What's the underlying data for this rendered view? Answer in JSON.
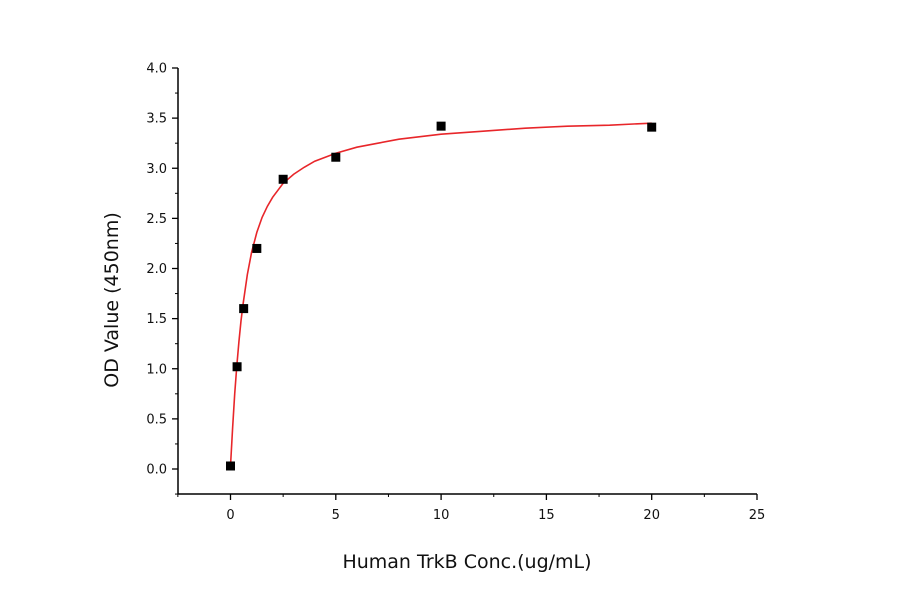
{
  "chart_data": {
    "type": "scatter",
    "title": "",
    "xlabel": "Human TrkB Conc.(ug/mL)",
    "ylabel": "OD Value (450nm)",
    "xlim": [
      -2.5,
      25
    ],
    "ylim": [
      -0.25,
      4.0
    ],
    "x_ticks": [
      0,
      5,
      10,
      15,
      20,
      25
    ],
    "x_tick_labels": [
      "0",
      "5",
      "10",
      "15",
      "20",
      "25"
    ],
    "y_ticks": [
      0.0,
      0.5,
      1.0,
      1.5,
      2.0,
      2.5,
      3.0,
      3.5,
      4.0
    ],
    "y_tick_labels": [
      "0.0",
      "0.5",
      "1.0",
      "1.5",
      "2.0",
      "2.5",
      "3.0",
      "3.5",
      "4.0"
    ],
    "grid": false,
    "legend": "none",
    "series": [
      {
        "kind": "points",
        "marker": "square",
        "color": "#000000",
        "x": [
          0,
          0.3125,
          0.625,
          1.25,
          2.5,
          5,
          10,
          20
        ],
        "y": [
          0.03,
          1.02,
          1.6,
          2.2,
          2.89,
          3.11,
          3.42,
          3.41
        ]
      },
      {
        "kind": "fit-curve",
        "color": "#e8262a",
        "x": [
          0,
          0.1,
          0.2,
          0.3,
          0.4,
          0.5,
          0.6,
          0.8,
          1.0,
          1.25,
          1.5,
          1.75,
          2.0,
          2.5,
          3.0,
          3.5,
          4.0,
          5.0,
          6.0,
          7.0,
          8.0,
          10.0,
          12.0,
          14.0,
          16.0,
          18.0,
          20.0
        ],
        "y": [
          0.03,
          0.41,
          0.75,
          1.03,
          1.27,
          1.48,
          1.65,
          1.94,
          2.16,
          2.36,
          2.51,
          2.62,
          2.71,
          2.85,
          2.94,
          3.01,
          3.07,
          3.15,
          3.21,
          3.25,
          3.29,
          3.34,
          3.37,
          3.4,
          3.42,
          3.43,
          3.45
        ]
      }
    ]
  }
}
